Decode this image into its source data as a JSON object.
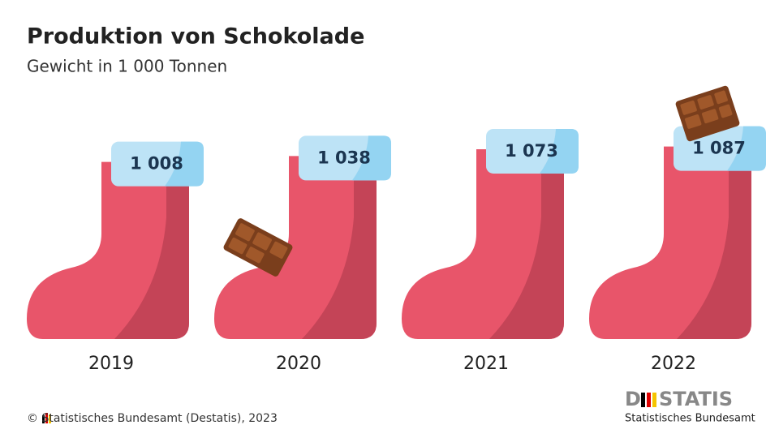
{
  "chart_data": {
    "type": "pictogram",
    "title": "Produktion von Schokolade",
    "subtitle": "Gewicht in 1 000 Tonnen",
    "categories": [
      "2019",
      "2020",
      "2021",
      "2022"
    ],
    "values": [
      1008,
      1038,
      1073,
      1087
    ],
    "value_labels": [
      "1 008",
      "1 038",
      "1 073",
      "1 087"
    ],
    "color": "#e8556a",
    "shade_color": "#c44457",
    "cuff_color": "#bde3f6"
  },
  "footer": {
    "source": "© Statistisches Bundesamt (Destatis), 2023",
    "logo_left": "D",
    "logo_right": "STATIS",
    "logo_sub": "Statistisches Bundesamt"
  }
}
